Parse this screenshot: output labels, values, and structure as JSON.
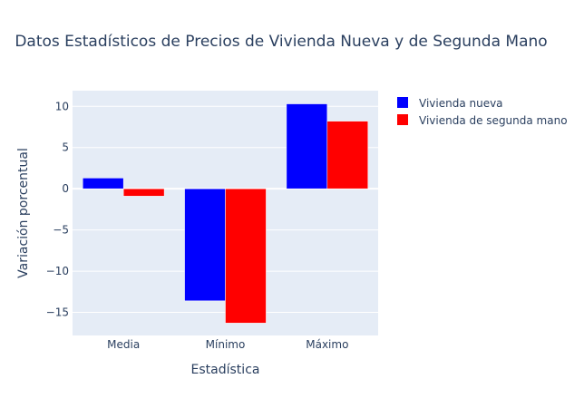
{
  "chart_data": {
    "type": "bar",
    "title": "Datos Estadísticos de Precios de Vivienda Nueva y de Segunda Mano",
    "xlabel": "Estadística",
    "ylabel": "Variación porcentual",
    "categories": [
      "Media",
      "Mínimo",
      "Máximo"
    ],
    "series": [
      {
        "name": "Vivienda nueva",
        "color": "#0000ff",
        "values": [
          1.3,
          -13.6,
          10.3
        ]
      },
      {
        "name": "Vivienda de segunda mano",
        "color": "#ff0000",
        "values": [
          -0.9,
          -16.3,
          8.2
        ]
      }
    ],
    "ylim": [
      -17.8,
      11.9
    ],
    "yticks": [
      10,
      5,
      0,
      -5,
      -10,
      -15
    ],
    "ytick_labels": [
      "10",
      "5",
      "0",
      "−5",
      "−10",
      "−15"
    ],
    "grid": true,
    "legend_position": "top-right",
    "plot_background": "#e5ecf6"
  }
}
